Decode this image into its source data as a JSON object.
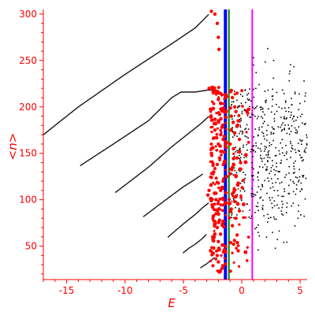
{
  "chart_data": {
    "type": "scatter",
    "xlabel": "E",
    "ylabel": "<n>",
    "xlim": [
      -17,
      5.6
    ],
    "ylim": [
      14,
      305
    ],
    "x_ticks": [
      -15,
      -10,
      -5,
      0,
      5
    ],
    "y_ticks": [
      50,
      100,
      150,
      200,
      250,
      300
    ],
    "grid": false,
    "colors": {
      "axes": "#ff0000",
      "black_points": "#000000",
      "red_points": "#ff0000",
      "blue_line": "#0000ff",
      "green_line": "#008000",
      "magenta_line": "#ff00ff"
    },
    "reference_lines": [
      {
        "color": "#0000ff",
        "x": -1.4
      },
      {
        "color": "#008000",
        "x": -1.1
      },
      {
        "color": "#ff00ff",
        "x": 0.9
      }
    ],
    "black_curves": [
      [
        [
          -17,
          170
        ],
        [
          -14,
          200
        ],
        [
          -10,
          235
        ],
        [
          -6,
          268
        ],
        [
          -4,
          285
        ],
        [
          -2.8,
          300
        ]
      ],
      [
        [
          -13.8,
          137
        ],
        [
          -11,
          160
        ],
        [
          -8,
          185
        ],
        [
          -6,
          210
        ],
        [
          -5.2,
          216
        ],
        [
          -4,
          216
        ],
        [
          -3,
          218
        ],
        [
          -2.2,
          218
        ]
      ],
      [
        [
          -10.8,
          108
        ],
        [
          -8,
          135
        ],
        [
          -6,
          157
        ],
        [
          -4.5,
          172
        ],
        [
          -3.5,
          182
        ],
        [
          -2.8,
          190
        ]
      ],
      [
        [
          -8.4,
          82
        ],
        [
          -6.5,
          100
        ],
        [
          -5,
          114
        ],
        [
          -4,
          122
        ],
        [
          -3.3,
          128
        ]
      ],
      [
        [
          -6.3,
          60
        ],
        [
          -5,
          74
        ],
        [
          -4,
          84
        ],
        [
          -3.3,
          92
        ],
        [
          -2.8,
          97
        ]
      ],
      [
        [
          -5,
          43
        ],
        [
          -4.5,
          48
        ],
        [
          -4,
          52
        ],
        [
          -3.4,
          58
        ],
        [
          -3,
          63
        ]
      ],
      [
        [
          -3.5,
          27
        ],
        [
          -3,
          31
        ],
        [
          -2.6,
          35
        ],
        [
          -2.3,
          38
        ]
      ]
    ],
    "red_points": [
      [
        -2.6,
        303
      ],
      [
        -2.3,
        300
      ],
      [
        -2.1,
        290
      ],
      [
        -2.0,
        275
      ],
      [
        -1.95,
        262
      ],
      [
        -2.8,
        220
      ],
      [
        -2.5,
        219
      ],
      [
        -2.2,
        217
      ],
      [
        -1.9,
        215
      ],
      [
        -1.7,
        213
      ],
      [
        -2.0,
        208
      ],
      [
        -1.8,
        204
      ],
      [
        -1.75,
        198
      ],
      [
        -1.9,
        192
      ],
      [
        -2.0,
        185
      ],
      [
        -1.7,
        178
      ],
      [
        -1.8,
        170
      ],
      [
        -2.0,
        160
      ],
      [
        -1.7,
        152
      ],
      [
        -1.9,
        145
      ],
      [
        -2.1,
        138
      ],
      [
        -2.4,
        130
      ],
      [
        -2.6,
        124
      ],
      [
        -2.0,
        118
      ],
      [
        -1.8,
        110
      ],
      [
        -2.2,
        100
      ],
      [
        -2.5,
        92
      ],
      [
        -2.2,
        85
      ],
      [
        -1.9,
        78
      ],
      [
        -2.1,
        70
      ],
      [
        -2.3,
        63
      ],
      [
        -2.0,
        55
      ],
      [
        -2.4,
        48
      ],
      [
        -2.1,
        40
      ],
      [
        -2.0,
        33
      ],
      [
        -1.7,
        26
      ],
      [
        -1.9,
        22
      ],
      [
        -1.6,
        120
      ],
      [
        -1.5,
        140
      ],
      [
        -1.6,
        165
      ],
      [
        -2.3,
        175
      ],
      [
        -2.6,
        150
      ],
      [
        -2.8,
        110
      ],
      [
        -2.9,
        105
      ],
      [
        -1.5,
        95
      ],
      [
        -0.5,
        195
      ],
      [
        -0.3,
        185
      ],
      [
        -0.8,
        210
      ],
      [
        -0.6,
        172
      ],
      [
        -0.2,
        165
      ],
      [
        -0.9,
        190
      ],
      [
        -0.7,
        155
      ],
      [
        -0.4,
        145
      ],
      [
        -0.8,
        135
      ],
      [
        -0.5,
        125
      ],
      [
        -0.3,
        118
      ],
      [
        -0.7,
        108
      ],
      [
        -0.6,
        98
      ],
      [
        -0.2,
        88
      ],
      [
        -0.5,
        80
      ],
      [
        -0.8,
        72
      ],
      [
        -0.4,
        62
      ],
      [
        -0.7,
        52
      ],
      [
        -0.3,
        45
      ],
      [
        -0.9,
        175
      ],
      [
        -0.1,
        140
      ],
      [
        -0.6,
        200
      ],
      [
        -1.0,
        160
      ],
      [
        -1.0,
        128
      ],
      [
        -0.9,
        90
      ]
    ]
  }
}
